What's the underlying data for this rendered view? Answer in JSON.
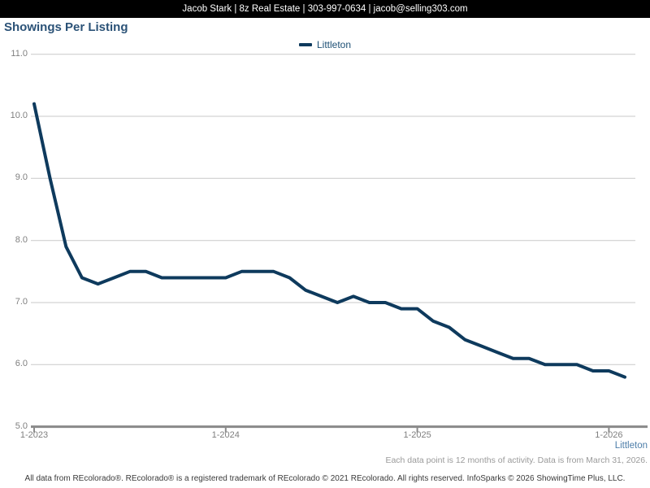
{
  "header": {
    "contact_line": "Jacob Stark | 8z Real Estate | 303-997-0634 | jacob@selling303.com"
  },
  "title": "Showings Per Listing",
  "legend": {
    "label": "Littleton"
  },
  "colors": {
    "line": "#0e3a5d",
    "title_text": "#2b5277",
    "legend_text": "#1c4f74",
    "axis_label_gray": "#7f7f7f",
    "baseline_gray": "#8a8a8a",
    "gridline_gray": "#c9c9c9",
    "footnote_blue": "#4d7ea9"
  },
  "chart_data": {
    "type": "line",
    "title": "Showings Per Listing",
    "xlabel": "",
    "ylabel": "",
    "ylim": [
      5.0,
      11.0
    ],
    "ytick_step": 1.0,
    "grid": "horizontal",
    "legend_position": "top-center",
    "ytick_labels": [
      "11.0",
      "10.0",
      "9.0",
      "8.0",
      "7.0",
      "6.0",
      "5.0"
    ],
    "xtick_labels": [
      "1-2023",
      "1-2024",
      "1-2025",
      "1-2026"
    ],
    "xtick_indices": [
      0,
      12,
      24,
      36
    ],
    "x": [
      "1-2023",
      "2-2023",
      "3-2023",
      "4-2023",
      "5-2023",
      "6-2023",
      "7-2023",
      "8-2023",
      "9-2023",
      "10-2023",
      "11-2023",
      "12-2023",
      "1-2024",
      "2-2024",
      "3-2024",
      "4-2024",
      "5-2024",
      "6-2024",
      "7-2024",
      "8-2024",
      "9-2024",
      "10-2024",
      "11-2024",
      "12-2024",
      "1-2025",
      "2-2025",
      "3-2025",
      "4-2025",
      "5-2025",
      "6-2025",
      "7-2025",
      "8-2025",
      "9-2025",
      "10-2025",
      "11-2025",
      "12-2025",
      "1-2026",
      "2-2026"
    ],
    "series": [
      {
        "name": "Littleton",
        "color": "#0e3a5d",
        "values": [
          10.2,
          9.0,
          7.9,
          7.4,
          7.3,
          7.4,
          7.5,
          7.5,
          7.4,
          7.4,
          7.4,
          7.4,
          7.4,
          7.5,
          7.5,
          7.5,
          7.4,
          7.2,
          7.1,
          7.0,
          7.1,
          7.0,
          7.0,
          6.9,
          6.9,
          6.7,
          6.6,
          6.4,
          6.3,
          6.2,
          6.1,
          6.1,
          6.0,
          6.0,
          6.0,
          5.9,
          5.9,
          5.8
        ]
      }
    ]
  },
  "footnotes": {
    "series_label": "Littleton",
    "data_note": "Each data point is 12 months of activity. Data is from March 31, 2026.",
    "copyright": "All data from REcolorado®. REcolorado® is a registered trademark of REcolorado © 2021 REcolorado. All rights reserved. InfoSparks © 2026 ShowingTime Plus, LLC."
  }
}
